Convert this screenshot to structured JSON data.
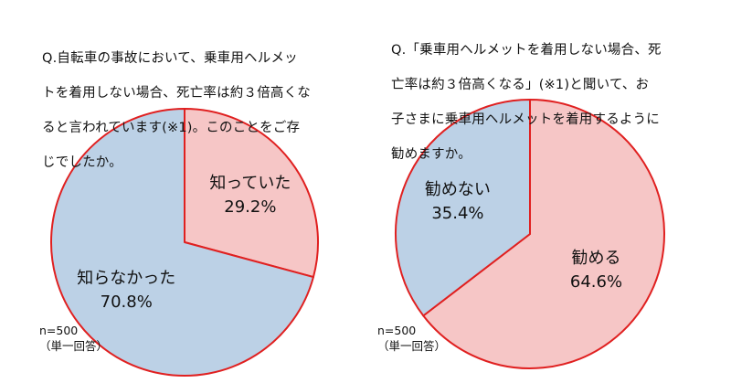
{
  "chart_data": [
    {
      "type": "pie",
      "title": "Q.自転車の事故において、乗車用ヘルメットを着用しない場合、死亡率は約３倍高くなると言われています(※1)。このことをご存じでしたか。",
      "title_lines": [
        "Q.自転車の事故において、乗車用ヘルメッ",
        "トを着用しない場合、死亡率は約３倍高くな",
        "ると言われています(※1)。このことをご存",
        "じでしたか。"
      ],
      "slices": [
        {
          "label": "知っていた",
          "value": 29.2,
          "value_label": "29.2%",
          "color": "#f6c6c6"
        },
        {
          "label": "知らなかった",
          "value": 70.8,
          "value_label": "70.8%",
          "color": "#bcd1e6"
        }
      ],
      "border_color": "#e02020",
      "note": "n=500\n（単一回答）"
    },
    {
      "type": "pie",
      "title": "Q.「乗車用ヘルメットを着用しない場合、死亡率は約３倍高くなる」(※1)と聞いて、お子さまに乗車用ヘルメットを着用するように勧めますか。",
      "title_lines": [
        "Q.「乗車用ヘルメットを着用しない場合、死",
        "亡率は約３倍高くなる」(※1)と聞いて、お",
        "子さまに乗車用ヘルメットを着用するように",
        "勧めますか。"
      ],
      "slices": [
        {
          "label": "勧める",
          "value": 64.6,
          "value_label": "64.6%",
          "color": "#f6c6c6"
        },
        {
          "label": "勧めない",
          "value": 35.4,
          "value_label": "35.4%",
          "color": "#bcd1e6"
        }
      ],
      "border_color": "#e02020",
      "note": "n=500\n（単一回答）"
    }
  ]
}
